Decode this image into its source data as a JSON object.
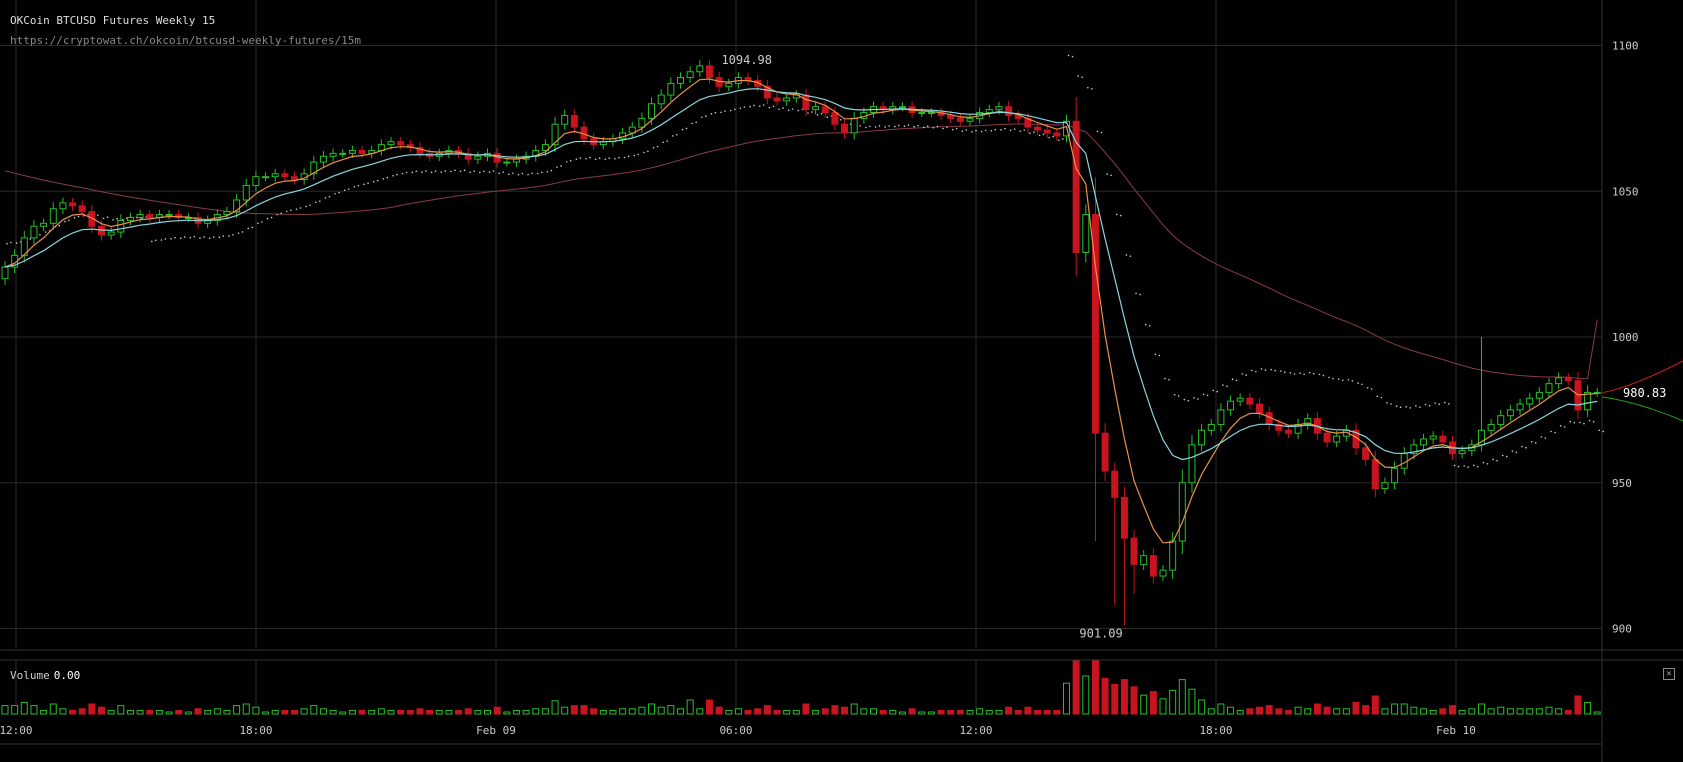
{
  "header": {
    "title": "OKCoin BTCUSD Futures Weekly 15",
    "url": "https://cryptowat.ch/okcoin/btcusd-weekly-futures/15m"
  },
  "volume_panel": {
    "label": "Volume",
    "value": "0.00",
    "close_icon": "close-icon"
  },
  "colors": {
    "background": "#000000",
    "grid": "#2a2a2a",
    "up": "#26c126",
    "down": "#c8141e",
    "ema_fast": "#e8924a",
    "ema_slow": "#8ad7e0",
    "sma_long": "#8a3a4a",
    "sar": "#cccccc",
    "depth_bid": "#1fa31f",
    "depth_ask": "#cc1a1a"
  },
  "chart_data": {
    "type": "candlestick",
    "title": "OKCoin BTCUSD Futures Weekly 15",
    "interval": "15m",
    "ylim": [
      892,
      1110
    ],
    "y_ticks": [
      900,
      950,
      1000,
      1050,
      1100
    ],
    "x_ticks": [
      "12:00",
      "18:00",
      "Feb 09",
      "06:00",
      "12:00",
      "18:00",
      "Feb 10"
    ],
    "annotations": {
      "high": "1094.98",
      "low": "901.09",
      "last": "980.83"
    },
    "last_price": 980.83,
    "volume": {
      "label": "Volume",
      "value": "0.00"
    },
    "closes": [
      1024,
      1028,
      1034,
      1038,
      1039,
      1044,
      1046,
      1045,
      1043,
      1038,
      1035,
      1036,
      1040,
      1041,
      1042,
      1041,
      1042,
      1042,
      1041,
      1041,
      1039,
      1040,
      1042,
      1043,
      1047,
      1052,
      1055,
      1055,
      1056,
      1055,
      1054,
      1056,
      1060,
      1062,
      1063,
      1063,
      1064,
      1063,
      1064,
      1066,
      1067,
      1066,
      1065,
      1063,
      1062,
      1063,
      1064,
      1063,
      1061,
      1062,
      1063,
      1060,
      1060,
      1061,
      1062,
      1064,
      1066,
      1073,
      1076,
      1072,
      1068,
      1066,
      1067,
      1068,
      1070,
      1072,
      1075,
      1080,
      1083,
      1087,
      1089,
      1091,
      1093,
      1089,
      1086,
      1087,
      1089,
      1088,
      1086,
      1082,
      1081,
      1082,
      1083,
      1078,
      1079,
      1077,
      1073,
      1070,
      1075,
      1077,
      1079,
      1078,
      1079,
      1079,
      1077,
      1077,
      1077,
      1076,
      1075,
      1074,
      1075,
      1077,
      1078,
      1079,
      1076,
      1075,
      1072,
      1071,
      1070,
      1069,
      1074,
      1029,
      1042,
      967,
      954,
      945,
      931,
      922,
      925,
      918,
      920,
      930,
      950,
      963,
      968,
      970,
      975,
      978,
      979,
      977,
      974,
      970,
      968,
      967,
      970,
      972,
      967,
      964,
      966,
      968,
      962,
      958,
      948,
      950,
      955,
      960,
      963,
      965,
      966,
      964,
      960,
      961,
      963,
      968,
      970,
      973,
      975,
      977,
      979,
      981,
      984,
      986,
      985,
      975,
      981,
      981
    ],
    "sma_long_end": 1006,
    "sar_end": 968
  }
}
